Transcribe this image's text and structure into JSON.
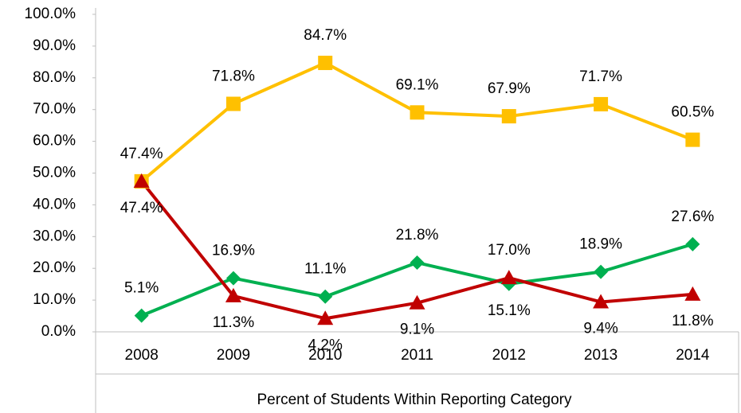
{
  "chart_data": {
    "type": "line",
    "x_label": "Percent of Students Within Reporting Category",
    "categories": [
      "2008",
      "2009",
      "2010",
      "2011",
      "2012",
      "2013",
      "2014"
    ],
    "series": [
      {
        "color": "#FFC000",
        "marker": "square",
        "values": [
          47.4,
          71.8,
          84.7,
          69.1,
          67.9,
          71.7,
          60.5
        ],
        "value_labels": [
          "47.4%",
          "71.8%",
          "84.7%",
          "69.1%",
          "67.9%",
          "71.7%",
          "60.5%"
        ]
      },
      {
        "color": "#00B050",
        "marker": "diamond",
        "values": [
          5.1,
          16.9,
          11.1,
          21.8,
          15.1,
          18.9,
          27.6
        ],
        "value_labels": [
          "5.1%",
          "16.9%",
          "11.1%",
          "21.8%",
          "15.1%",
          "18.9%",
          "27.6%"
        ]
      },
      {
        "color": "#C00000",
        "marker": "triangle",
        "values": [
          47.4,
          11.3,
          4.2,
          9.1,
          17.0,
          9.4,
          11.8
        ],
        "value_labels": [
          "47.4%",
          "11.3%",
          "4.2%",
          "9.1%",
          "17.0%",
          "9.4%",
          "11.8%"
        ]
      }
    ],
    "ylim": [
      0,
      100
    ],
    "yticks": [
      {
        "value": 0,
        "label": "0.0%"
      },
      {
        "value": 10,
        "label": "10.0%"
      },
      {
        "value": 20,
        "label": "20.0%"
      },
      {
        "value": 30,
        "label": "30.0%"
      },
      {
        "value": 40,
        "label": "40.0%"
      },
      {
        "value": 50,
        "label": "50.0%"
      },
      {
        "value": 60,
        "label": "60.0%"
      },
      {
        "value": 70,
        "label": "70.0%"
      },
      {
        "value": 80,
        "label": "80.0%"
      },
      {
        "value": 90,
        "label": "90.0%"
      },
      {
        "value": 100,
        "label": "100.0%"
      }
    ],
    "grid": false
  }
}
